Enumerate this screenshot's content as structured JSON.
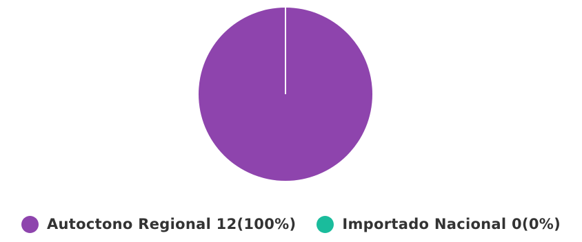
{
  "chart_data": {
    "type": "pie",
    "slices": [
      {
        "label": "Autoctono Regional",
        "value": 12,
        "percent": 100,
        "color": "#8e44ad"
      },
      {
        "label": "Importado Nacional",
        "value": 0,
        "percent": 0,
        "color": "#1abc9c"
      }
    ],
    "legend": {
      "placement": "bottom",
      "entries": [
        "Autoctono Regional 12(100%)",
        "Importado Nacional 0(0%)"
      ]
    }
  }
}
